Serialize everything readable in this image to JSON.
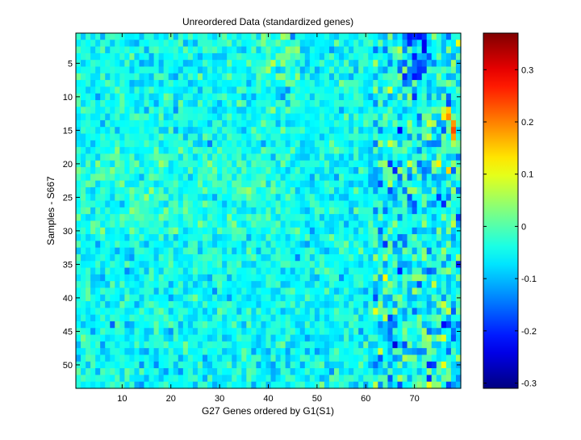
{
  "chart_data": [
    {
      "type": "heatmap",
      "title": "Unreordered Data (standardized genes)",
      "xlabel": "G27 Genes ordered by G1(S1)",
      "ylabel": "Samples - S667",
      "n_cols": 79,
      "n_rows": 53,
      "xlim": [
        0.5,
        79.5
      ],
      "ylim": [
        0.5,
        53.5
      ],
      "x_ticks": [
        10,
        20,
        30,
        40,
        50,
        60,
        70
      ],
      "y_ticks": [
        5,
        10,
        15,
        20,
        25,
        30,
        35,
        40,
        45,
        50
      ],
      "y_direction": "reverse",
      "colormap": "jet",
      "value_range": [
        -0.31,
        0.37
      ],
      "value_note": "cell values estimated from the color image; approximated generatively (background ~ -0.05 with noisy cells, high-variance region on the right)",
      "colorbar_ticks": [
        -0.3,
        -0.2,
        -0.1,
        0,
        0.1,
        0.2,
        0.3
      ],
      "grid": false
    }
  ]
}
